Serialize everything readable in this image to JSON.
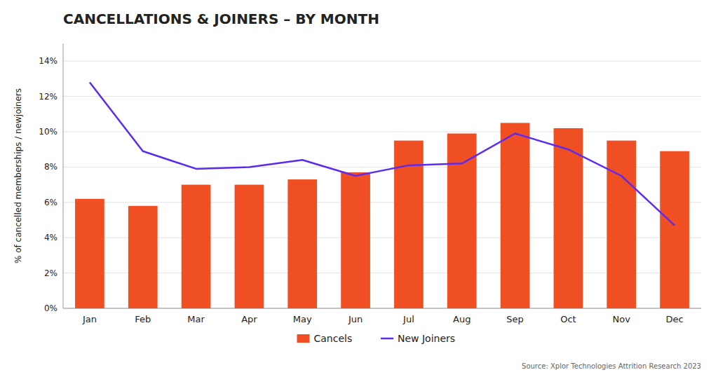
{
  "chart_data": {
    "type": "bar",
    "title": "CANCELLATIONS & JOINERS – BY MONTH",
    "ylabel": "% of cancelled memberships / newjoiners",
    "annotations": [
      "Source: Xplor Technologies Attrition Research 2023"
    ],
    "categories": [
      "Jan",
      "Feb",
      "Mar",
      "Apr",
      "May",
      "Jun",
      "Jul",
      "Aug",
      "Sep",
      "Oct",
      "Nov",
      "Dec"
    ],
    "series": [
      {
        "name": "Cancels",
        "type": "bar",
        "color": "#F04E23",
        "values": [
          0.062,
          0.058,
          0.07,
          0.07,
          0.073,
          0.077,
          0.095,
          0.099,
          0.105,
          0.102,
          0.095,
          0.089
        ]
      },
      {
        "name": "New Joiners",
        "type": "line",
        "color": "#5B2BF0",
        "values": [
          0.128,
          0.089,
          0.079,
          0.08,
          0.084,
          0.075,
          0.081,
          0.082,
          0.099,
          0.09,
          0.075,
          0.047
        ]
      }
    ],
    "ylim": [
      0,
      0.15
    ],
    "yticks": [
      {
        "value": 0.0,
        "label": "0%"
      },
      {
        "value": 0.02,
        "label": "2%"
      },
      {
        "value": 0.04,
        "label": "4%"
      },
      {
        "value": 0.06,
        "label": "6%"
      },
      {
        "value": 0.08,
        "label": "8%"
      },
      {
        "value": 0.1,
        "label": "10%"
      },
      {
        "value": 0.12,
        "label": "12%"
      },
      {
        "value": 0.14,
        "label": "14%"
      }
    ],
    "grid": true,
    "legend": "bottom"
  }
}
